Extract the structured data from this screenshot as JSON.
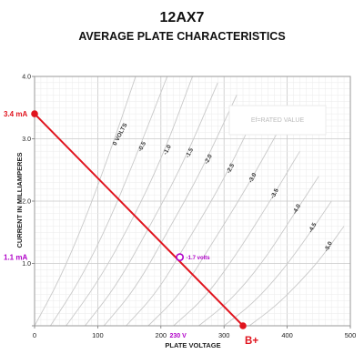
{
  "chart_data": {
    "type": "line",
    "title": "12AX7",
    "subtitle": "AVERAGE PLATE CHARACTERISTICS",
    "xlabel": "PLATE VOLTAGE",
    "ylabel": "CURRENT IN MILLIAMPERES",
    "xlim": [
      0,
      500
    ],
    "ylim": [
      0,
      4.0
    ],
    "x_ticks": [
      0,
      100,
      200,
      300,
      400,
      500
    ],
    "x_tick_labels": [
      "0",
      "100",
      "200",
      "300",
      "400",
      "500"
    ],
    "y_ticks": [
      0,
      1.0,
      2.0,
      3.0,
      4.0
    ],
    "y_tick_labels": [
      "",
      "1.0",
      "2.0",
      "3.0",
      "4.0"
    ],
    "grid": true,
    "rated_value_label": "Ef=RATED VALUE",
    "series": [
      {
        "name": "0 VOLTS",
        "x": [
          0,
          40,
          80,
          120,
          160
        ],
        "y": [
          0,
          0.75,
          1.7,
          2.8,
          4.0
        ]
      },
      {
        "name": "-0.5",
        "x": [
          25,
          70,
          115,
          160,
          210
        ],
        "y": [
          0,
          0.7,
          1.6,
          2.7,
          4.0
        ]
      },
      {
        "name": "-1.0",
        "x": [
          50,
          100,
          150,
          200,
          250
        ],
        "y": [
          0,
          0.7,
          1.6,
          2.65,
          4.0
        ]
      },
      {
        "name": "-1.5",
        "x": [
          80,
          130,
          180,
          235,
          290
        ],
        "y": [
          0,
          0.65,
          1.55,
          2.6,
          3.9
        ]
      },
      {
        "name": "-2.0",
        "x": [
          110,
          160,
          210,
          265,
          320
        ],
        "y": [
          0,
          0.6,
          1.5,
          2.5,
          3.7
        ]
      },
      {
        "name": "-2.5",
        "x": [
          145,
          195,
          245,
          300,
          355
        ],
        "y": [
          0,
          0.55,
          1.4,
          2.35,
          3.5
        ]
      },
      {
        "name": "-3.0",
        "x": [
          180,
          230,
          280,
          335,
          390
        ],
        "y": [
          0,
          0.5,
          1.3,
          2.2,
          3.2
        ]
      },
      {
        "name": "-3.5",
        "x": [
          220,
          270,
          320,
          370,
          420
        ],
        "y": [
          0,
          0.45,
          1.15,
          1.95,
          2.8
        ]
      },
      {
        "name": "-4.0",
        "x": [
          260,
          310,
          360,
          405,
          450
        ],
        "y": [
          0,
          0.4,
          1.0,
          1.7,
          2.4
        ]
      },
      {
        "name": "-4.5",
        "x": [
          300,
          345,
          390,
          430,
          470
        ],
        "y": [
          0,
          0.35,
          0.85,
          1.4,
          2.0
        ]
      },
      {
        "name": "-5.0",
        "x": [
          340,
          380,
          420,
          455,
          490
        ],
        "y": [
          0,
          0.3,
          0.7,
          1.1,
          1.6
        ]
      }
    ],
    "load_line": {
      "x": [
        0,
        330
      ],
      "y": [
        3.4,
        0
      ],
      "color": "#e0141e",
      "start_label": "3.4 mA",
      "end_label": "B+"
    },
    "operating_point": {
      "x": 230,
      "y": 1.1,
      "label": "-1.7 volts",
      "current_label": "1.1 mA",
      "voltage_label": "230 V",
      "color": "#b000c8"
    }
  }
}
